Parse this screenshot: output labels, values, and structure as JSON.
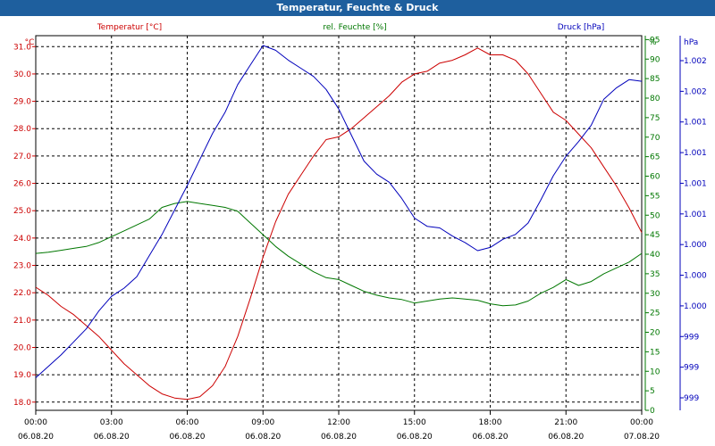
{
  "title": "Temperatur, Feuchte & Druck",
  "colors": {
    "titlebar": "#1e5f9e",
    "temperature": "#cc0000",
    "humidity": "#007700",
    "pressure": "#0000bb"
  },
  "chart_data": {
    "type": "line",
    "grid": true,
    "x_ticks": [
      {
        "time": "00:00",
        "date": "06.08.20"
      },
      {
        "time": "03:00",
        "date": "06.08.20"
      },
      {
        "time": "06:00",
        "date": "06.08.20"
      },
      {
        "time": "09:00",
        "date": "06.08.20"
      },
      {
        "time": "12:00",
        "date": "06.08.20"
      },
      {
        "time": "15:00",
        "date": "06.08.20"
      },
      {
        "time": "18:00",
        "date": "06.08.20"
      },
      {
        "time": "21:00",
        "date": "06.08.20"
      },
      {
        "time": "00:00",
        "date": "07.08.20"
      }
    ],
    "x_hours": [
      0,
      0.5,
      1,
      1.5,
      2,
      2.5,
      3,
      3.5,
      4,
      4.5,
      5,
      5.5,
      6,
      6.5,
      7,
      7.5,
      8,
      8.5,
      9,
      9.5,
      10,
      10.5,
      11,
      11.5,
      12,
      12.5,
      13,
      13.5,
      14,
      14.5,
      15,
      15.5,
      16,
      16.5,
      17,
      17.5,
      18,
      18.5,
      19,
      19.5,
      20,
      20.5,
      21,
      21.5,
      22,
      22.5,
      23,
      23.5,
      24
    ],
    "axes": {
      "temperature": {
        "label": "Temperatur [°C]",
        "unit": "°C",
        "range": [
          17.7,
          31.4
        ],
        "ticks": [
          "18.0",
          "19.0",
          "20.0",
          "21.0",
          "22.0",
          "23.0",
          "24.0",
          "25.0",
          "26.0",
          "27.0",
          "28.0",
          "29.0",
          "30.0",
          "31.0"
        ]
      },
      "humidity": {
        "label": "rel. Feuchte [%]",
        "unit": "%",
        "range": [
          0,
          96
        ],
        "ticks": [
          "0",
          "5",
          "10",
          "15",
          "20",
          "25",
          "30",
          "35",
          "40",
          "45",
          "50",
          "55",
          "60",
          "65",
          "70",
          "75",
          "80",
          "85",
          "90",
          "95"
        ]
      },
      "pressure": {
        "label": "Druck [hPa]",
        "unit": "hPa",
        "ticks": [
          "999",
          "999",
          "999",
          "1.000",
          "1.000",
          "1.000",
          "1.001",
          "1.001",
          "1.001",
          "1.001",
          "1.002",
          "1.002"
        ]
      }
    },
    "series": [
      {
        "name": "Temperatur [°C]",
        "axis": "temperature",
        "values": [
          22.2,
          21.9,
          21.5,
          21.2,
          20.8,
          20.4,
          19.9,
          19.4,
          19.0,
          18.6,
          18.3,
          18.15,
          18.1,
          18.2,
          18.6,
          19.3,
          20.4,
          21.8,
          23.3,
          24.6,
          25.6,
          26.3,
          27.0,
          27.6,
          27.7,
          28.0,
          28.4,
          28.8,
          29.2,
          29.7,
          30.0,
          30.1,
          30.4,
          30.5,
          30.7,
          30.95,
          30.7,
          30.7,
          30.5,
          30.0,
          29.3,
          28.6,
          28.3,
          27.8,
          27.3,
          26.6,
          25.9,
          25.1,
          24.2
        ]
      },
      {
        "name": "rel. Feuchte [%]",
        "axis": "humidity",
        "values": [
          40.2,
          40.5,
          41,
          41.5,
          42,
          43,
          44.5,
          46,
          47.5,
          49,
          52,
          53,
          53.5,
          53,
          52.5,
          52,
          51,
          48,
          45,
          42,
          39.5,
          37.5,
          35.5,
          34,
          33.5,
          32,
          30.5,
          29.5,
          28.8,
          28.4,
          27.5,
          28,
          28.5,
          28.8,
          28.5,
          28.2,
          27.3,
          26.8,
          27,
          28,
          30,
          31.5,
          33.5,
          32,
          33,
          35,
          36.5,
          38,
          40.2
        ]
      },
      {
        "name": "Druck [hPa]",
        "axis": "pressure",
        "values": [
          999.0,
          999.07,
          999.14,
          999.22,
          999.3,
          999.41,
          999.5,
          999.55,
          999.62,
          999.75,
          999.88,
          1000.03,
          1000.18,
          1000.34,
          1000.5,
          1000.63,
          1000.8,
          1000.92,
          1001.04,
          1001.01,
          1000.95,
          1000.9,
          1000.85,
          1000.77,
          1000.65,
          1000.49,
          1000.33,
          1000.25,
          1000.2,
          1000.1,
          999.98,
          999.93,
          999.92,
          999.87,
          999.83,
          999.78,
          999.8,
          999.85,
          999.88,
          999.95,
          1000.09,
          1000.24,
          1000.36,
          1000.45,
          1000.55,
          1000.71,
          1000.78,
          1000.83,
          1000.82
        ]
      }
    ]
  }
}
